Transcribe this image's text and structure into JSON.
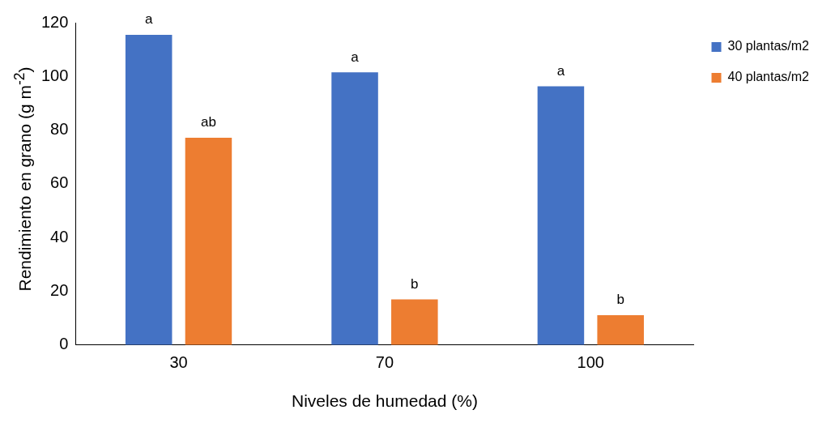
{
  "chart_data": {
    "type": "bar",
    "xlabel": "Niveles de humedad (%)",
    "ylabel": "Rendimiento en grano (g m$^{-2}$)",
    "categories": [
      "30",
      "70",
      "100"
    ],
    "series": [
      {
        "name": "30 plantas/m2",
        "color": "#4472c4",
        "values": [
          115.5,
          101.5,
          96.3
        ]
      },
      {
        "name": "40 plantas/m2",
        "color": "#ed7d31",
        "values": [
          77.2,
          17,
          11.1
        ]
      }
    ],
    "ylim": [
      0,
      120
    ],
    "yticks": [
      0,
      20,
      40,
      60,
      80,
      100,
      120
    ],
    "grid": false,
    "legend": "top right",
    "annotations": [
      "a",
      "ab",
      "a",
      "b",
      "a",
      "b"
    ]
  }
}
